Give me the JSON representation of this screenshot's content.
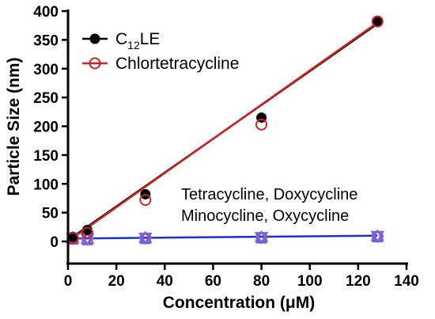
{
  "chart_data": {
    "type": "scatter",
    "xlabel": "Concentration (μM)",
    "ylabel": "Particle Size (nm)",
    "xlim": [
      0,
      140
    ],
    "ylim": [
      0,
      400
    ],
    "xticks": [
      0,
      20,
      40,
      60,
      80,
      100,
      120,
      140
    ],
    "yticks": [
      0,
      50,
      100,
      150,
      200,
      250,
      300,
      350,
      400
    ],
    "grid": false,
    "legend": {
      "position": "top-left",
      "entries": [
        {
          "prefix": "C",
          "subscript": "12",
          "suffix": "LE"
        },
        {
          "text": "Chlortetracycline"
        }
      ]
    },
    "annotation": {
      "line1": "Tetracycline, Doxycycline",
      "line2": "Minocycline, Oxycycline"
    },
    "series": [
      {
        "legend_index": 0,
        "marker": "filled-circle",
        "color": "#000000",
        "x": [
          2,
          8,
          32,
          80,
          128
        ],
        "y": [
          8,
          20,
          82,
          215,
          382
        ]
      },
      {
        "legend_index": 1,
        "marker": "open-circle",
        "color": "#cc2222",
        "x": [
          2,
          8,
          32,
          80,
          128
        ],
        "y": [
          6,
          15,
          72,
          203,
          382
        ]
      },
      {
        "marker": "open-square",
        "color": "#7b5fd6",
        "x": [
          2,
          8,
          32,
          80,
          128
        ],
        "y": [
          4,
          3,
          5,
          6,
          8
        ]
      },
      {
        "marker": "open-triangle",
        "color": "#7b5fd6",
        "x": [
          2,
          8,
          32,
          80,
          128
        ],
        "y": [
          5,
          4,
          6,
          7,
          9
        ]
      },
      {
        "marker": "open-triangle-down",
        "color": "#7b5fd6",
        "x": [
          2,
          8,
          32,
          80,
          128
        ],
        "y": [
          6,
          5,
          7,
          8,
          10
        ]
      },
      {
        "marker": "open-diamond",
        "color": "#7b5fd6",
        "x": [
          2,
          8,
          32,
          80,
          128
        ],
        "y": [
          5,
          5,
          6,
          7,
          9
        ]
      }
    ],
    "fit_lines": [
      {
        "color": "#000000",
        "x": [
          0,
          128
        ],
        "y": [
          2,
          378
        ]
      },
      {
        "color": "#cc2222",
        "x": [
          0,
          128
        ],
        "y": [
          0,
          380
        ]
      },
      {
        "color": "#1f2fd6",
        "x": [
          0,
          128
        ],
        "y": [
          5,
          10
        ]
      }
    ]
  }
}
